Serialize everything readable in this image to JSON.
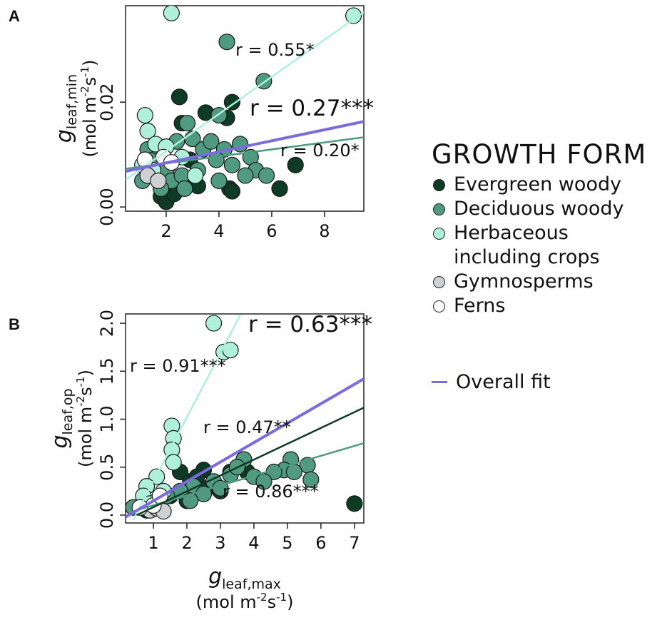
{
  "legend": {
    "title": "GROWTH FORM",
    "fit": {
      "name": "Overall fit",
      "color": "#7b6ae0"
    }
  },
  "x_label": {
    "symbol": "g",
    "sub": "leaf,max",
    "unit": [
      "(mol m",
      "-2",
      "s",
      "-1",
      ")"
    ]
  },
  "chart_data": [
    {
      "type": "scatter",
      "panel_label": "A",
      "y_label": {
        "symbol": "g",
        "sub": "leaf,min",
        "unit": [
          "(mol m",
          "-2",
          "s",
          "-1",
          ")"
        ]
      },
      "xlim": [
        0.46,
        9.49
      ],
      "ylim": [
        -0.0008,
        0.0384
      ],
      "xticks": [
        2,
        4,
        6,
        8
      ],
      "yticks": [
        {
          "value": 0,
          "label": "0.00"
        },
        {
          "value": 0.02,
          "label": "0.02"
        }
      ],
      "series": [
        {
          "name": "Evergreen woody",
          "color": "#0e3b25",
          "x": [
            2.5,
            2.6,
            3.5,
            4.5,
            4.3,
            6.9,
            6.3,
            4.4,
            1.8,
            2.0,
            2.3,
            2.8,
            3.2,
            1.6,
            2.1,
            4.5,
            2.9,
            1.9
          ],
          "y": [
            0.021,
            0.016,
            0.018,
            0.02,
            0.017,
            0.008,
            0.0035,
            0.0035,
            0.002,
            0.001,
            0.0025,
            0.005,
            0.004,
            0.006,
            0.008,
            0.003,
            0.009,
            0.004
          ]
        },
        {
          "name": "Deciduous woody",
          "color": "#4f9a80",
          "x": [
            4.3,
            5.7,
            4.0,
            2.4,
            2.8,
            3.0,
            3.4,
            3.7,
            4.2,
            4.8,
            5.2,
            5.4,
            5.8,
            4.0,
            3.2,
            1.3,
            1.5,
            2.0,
            2.2,
            2.6,
            1.1,
            1.8,
            3.9,
            4.5,
            5.0,
            2.7,
            1.3,
            1.7
          ],
          "y": [
            0.0315,
            0.024,
            0.0175,
            0.0125,
            0.016,
            0.013,
            0.011,
            0.0125,
            0.011,
            0.012,
            0.0095,
            0.007,
            0.006,
            0.005,
            0.007,
            0.011,
            0.009,
            0.007,
            0.005,
            0.006,
            0.005,
            0.0035,
            0.009,
            0.008,
            0.006,
            0.0035,
            0.0075,
            0.0115
          ]
        },
        {
          "name": "Herbaceous including crops",
          "color": "#aef0d9",
          "x": [
            2.2,
            9.1,
            1.2,
            1.3,
            1.6,
            2.0,
            2.6,
            1.5,
            3.1,
            1.1
          ],
          "y": [
            0.037,
            0.0365,
            0.0175,
            0.0145,
            0.012,
            0.0115,
            0.0095,
            0.007,
            0.006,
            0.008
          ]
        },
        {
          "name": "Gymnosperms",
          "color": "#cfd0d3",
          "x": [
            1.3,
            1.7
          ],
          "y": [
            0.006,
            0.005
          ]
        },
        {
          "name": "Ferns",
          "color": "#ffffff",
          "x": [
            1.9,
            2.2,
            1.2
          ],
          "y": [
            0.0095,
            0.0085,
            0.009
          ]
        }
      ],
      "fits": [
        {
          "color": "#aef0d9",
          "x": [
            0.46,
            9.49
          ],
          "y": [
            0.0052,
            0.0372
          ]
        },
        {
          "color": "#4f9a80",
          "x": [
            0.46,
            9.49
          ],
          "y": [
            0.0073,
            0.0133
          ]
        },
        {
          "color": "#7b6ae0",
          "x": [
            0.46,
            9.49
          ],
          "y": [
            0.0068,
            0.0163
          ]
        }
      ],
      "annotations": [
        {
          "text": "r = 0.55*",
          "color": "#aef0d9"
        },
        {
          "text": "r = 0.27***",
          "color": "#7b6ae0"
        },
        {
          "text": "r = 0.20*",
          "color": "#4f9a80"
        }
      ]
    },
    {
      "type": "scatter",
      "panel_label": "B",
      "y_label": {
        "symbol": "g",
        "sub": "leaf,op",
        "unit": [
          "(mol m",
          "-2",
          "s",
          "-1",
          ")"
        ]
      },
      "xlim": [
        0.17,
        7.28
      ],
      "ylim": [
        -0.082,
        2.097
      ],
      "xticks": [
        1,
        2,
        3,
        4,
        5,
        6,
        7
      ],
      "yticks": [
        {
          "value": 0,
          "label": "0.0"
        },
        {
          "value": 0.5,
          "label": "0.5"
        },
        {
          "value": 1,
          "label": "1.0"
        },
        {
          "value": 1.5,
          "label": "1.5"
        },
        {
          "value": 2,
          "label": "2.0"
        }
      ],
      "series": [
        {
          "color": "#0e3b25",
          "x": [
            7.0,
            2.5,
            1.8,
            3.3,
            2.1,
            2.6,
            1.5,
            1.2,
            2.0,
            3.0,
            1.0,
            0.8,
            3.8,
            2.3
          ],
          "y": [
            0.12,
            0.47,
            0.45,
            0.45,
            0.35,
            0.28,
            0.2,
            0.15,
            0.15,
            0.25,
            0.1,
            0.05,
            0.45,
            0.4
          ]
        },
        {
          "color": "#4f9a80",
          "x": [
            3.7,
            5.1,
            5.6,
            5.7,
            4.9,
            4.6,
            5.2,
            4.0,
            3.3,
            2.8,
            2.2,
            1.8,
            1.4,
            3.0,
            2.5,
            1.1,
            0.4,
            2.1,
            3.5,
            4.3
          ],
          "y": [
            0.58,
            0.58,
            0.52,
            0.37,
            0.47,
            0.45,
            0.45,
            0.4,
            0.42,
            0.35,
            0.3,
            0.25,
            0.2,
            0.28,
            0.22,
            0.12,
            0.08,
            0.15,
            0.5,
            0.35
          ]
        },
        {
          "color": "#aef0d9",
          "x": [
            2.8,
            3.1,
            3.3,
            1.55,
            1.6,
            1.55,
            1.6,
            1.1,
            0.8,
            0.7,
            0.9,
            1.3
          ],
          "y": [
            2.0,
            1.7,
            1.72,
            0.93,
            0.8,
            0.68,
            0.55,
            0.4,
            0.3,
            0.2,
            0.12,
            0.25
          ]
        },
        {
          "color": "#cfd0d3",
          "x": [
            0.9,
            1.1,
            1.3
          ],
          "y": [
            0.05,
            0.07,
            0.04
          ]
        },
        {
          "color": "#ffffff",
          "x": [
            1.0,
            1.2,
            0.6
          ],
          "y": [
            0.1,
            0.2,
            0.08
          ]
        }
      ],
      "fits": [
        {
          "color": "#aef0d9",
          "x": [
            0.4,
            3.6
          ],
          "y": [
            -0.05,
            2.09
          ]
        },
        {
          "color": "#4f9a80",
          "x": [
            0.5,
            7.28
          ],
          "y": [
            0.05,
            0.75
          ]
        },
        {
          "color": "#0e3b25",
          "x": [
            0.5,
            7.28
          ],
          "y": [
            0.0,
            1.12
          ]
        },
        {
          "color": "#7b6ae0",
          "x": [
            0.17,
            7.28
          ],
          "y": [
            -0.02,
            1.42
          ]
        }
      ],
      "annotations": [
        {
          "text": "r = 0.63***",
          "color": "#7b6ae0"
        },
        {
          "text": "r = 0.91***",
          "color": "#aef0d9"
        },
        {
          "text": "r = 0.47**",
          "color": "#0e3b25"
        },
        {
          "text": "r = 0.86***",
          "color": "#4f9a80"
        }
      ]
    }
  ]
}
